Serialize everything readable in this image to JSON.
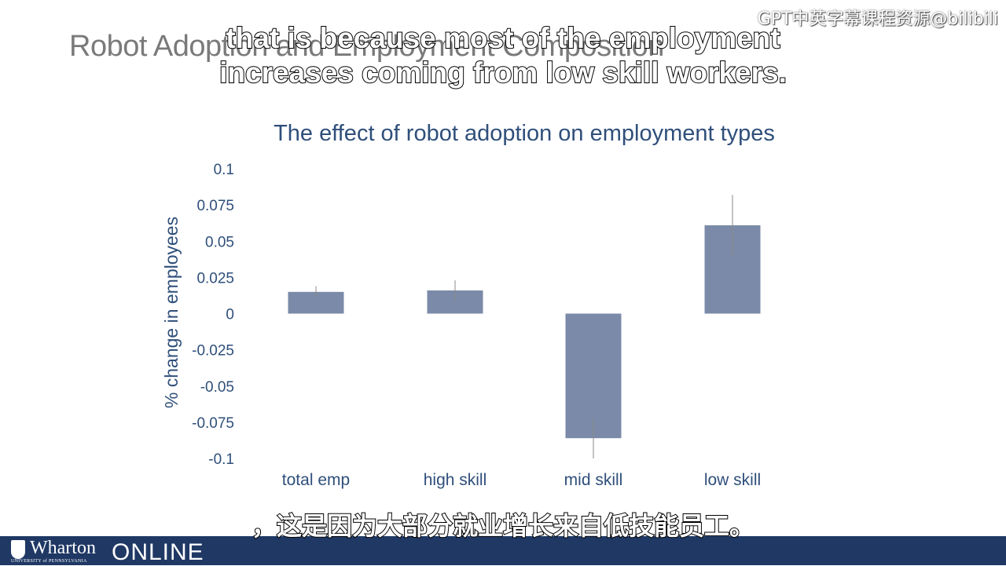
{
  "slide": {
    "title": "Robot Adoption and Employment Composition",
    "watermark": "GPT中英字幕课程资源@bilibili"
  },
  "subtitles": {
    "en_line1": "that is because most of the employment",
    "en_line2": "increases coming from low skill workers.",
    "zh": "，这是因为大部分就业增长来自低技能员工。"
  },
  "footer": {
    "logo_name": "Wharton",
    "logo_university": "UNIVERSITY of PENNSYLVANIA",
    "logo_online": "ONLINE",
    "background": "#1f3864"
  },
  "chart_data": {
    "type": "bar",
    "title": "The effect of robot adoption on employment types",
    "ylabel": "% change in employees",
    "xlabel": "",
    "categories": [
      "total emp",
      "high skill",
      "mid skill",
      "low skill"
    ],
    "values": [
      0.015,
      0.016,
      -0.086,
      0.061
    ],
    "error_low": [
      0.012,
      0.009,
      -0.072,
      0.04
    ],
    "error_high": [
      0.019,
      0.023,
      -0.1,
      0.082
    ],
    "ylim": [
      -0.1,
      0.1
    ],
    "yticks": [
      0.1,
      0.075,
      0.05,
      0.025,
      0,
      -0.025,
      -0.05,
      -0.075,
      -0.1
    ],
    "ytick_labels": [
      "0.1",
      "0.075",
      "0.05",
      "0.025",
      "0",
      "-0.025",
      "-0.05",
      "-0.075",
      "-0.1"
    ],
    "bar_color": "#7b8aa8",
    "grid": false
  }
}
